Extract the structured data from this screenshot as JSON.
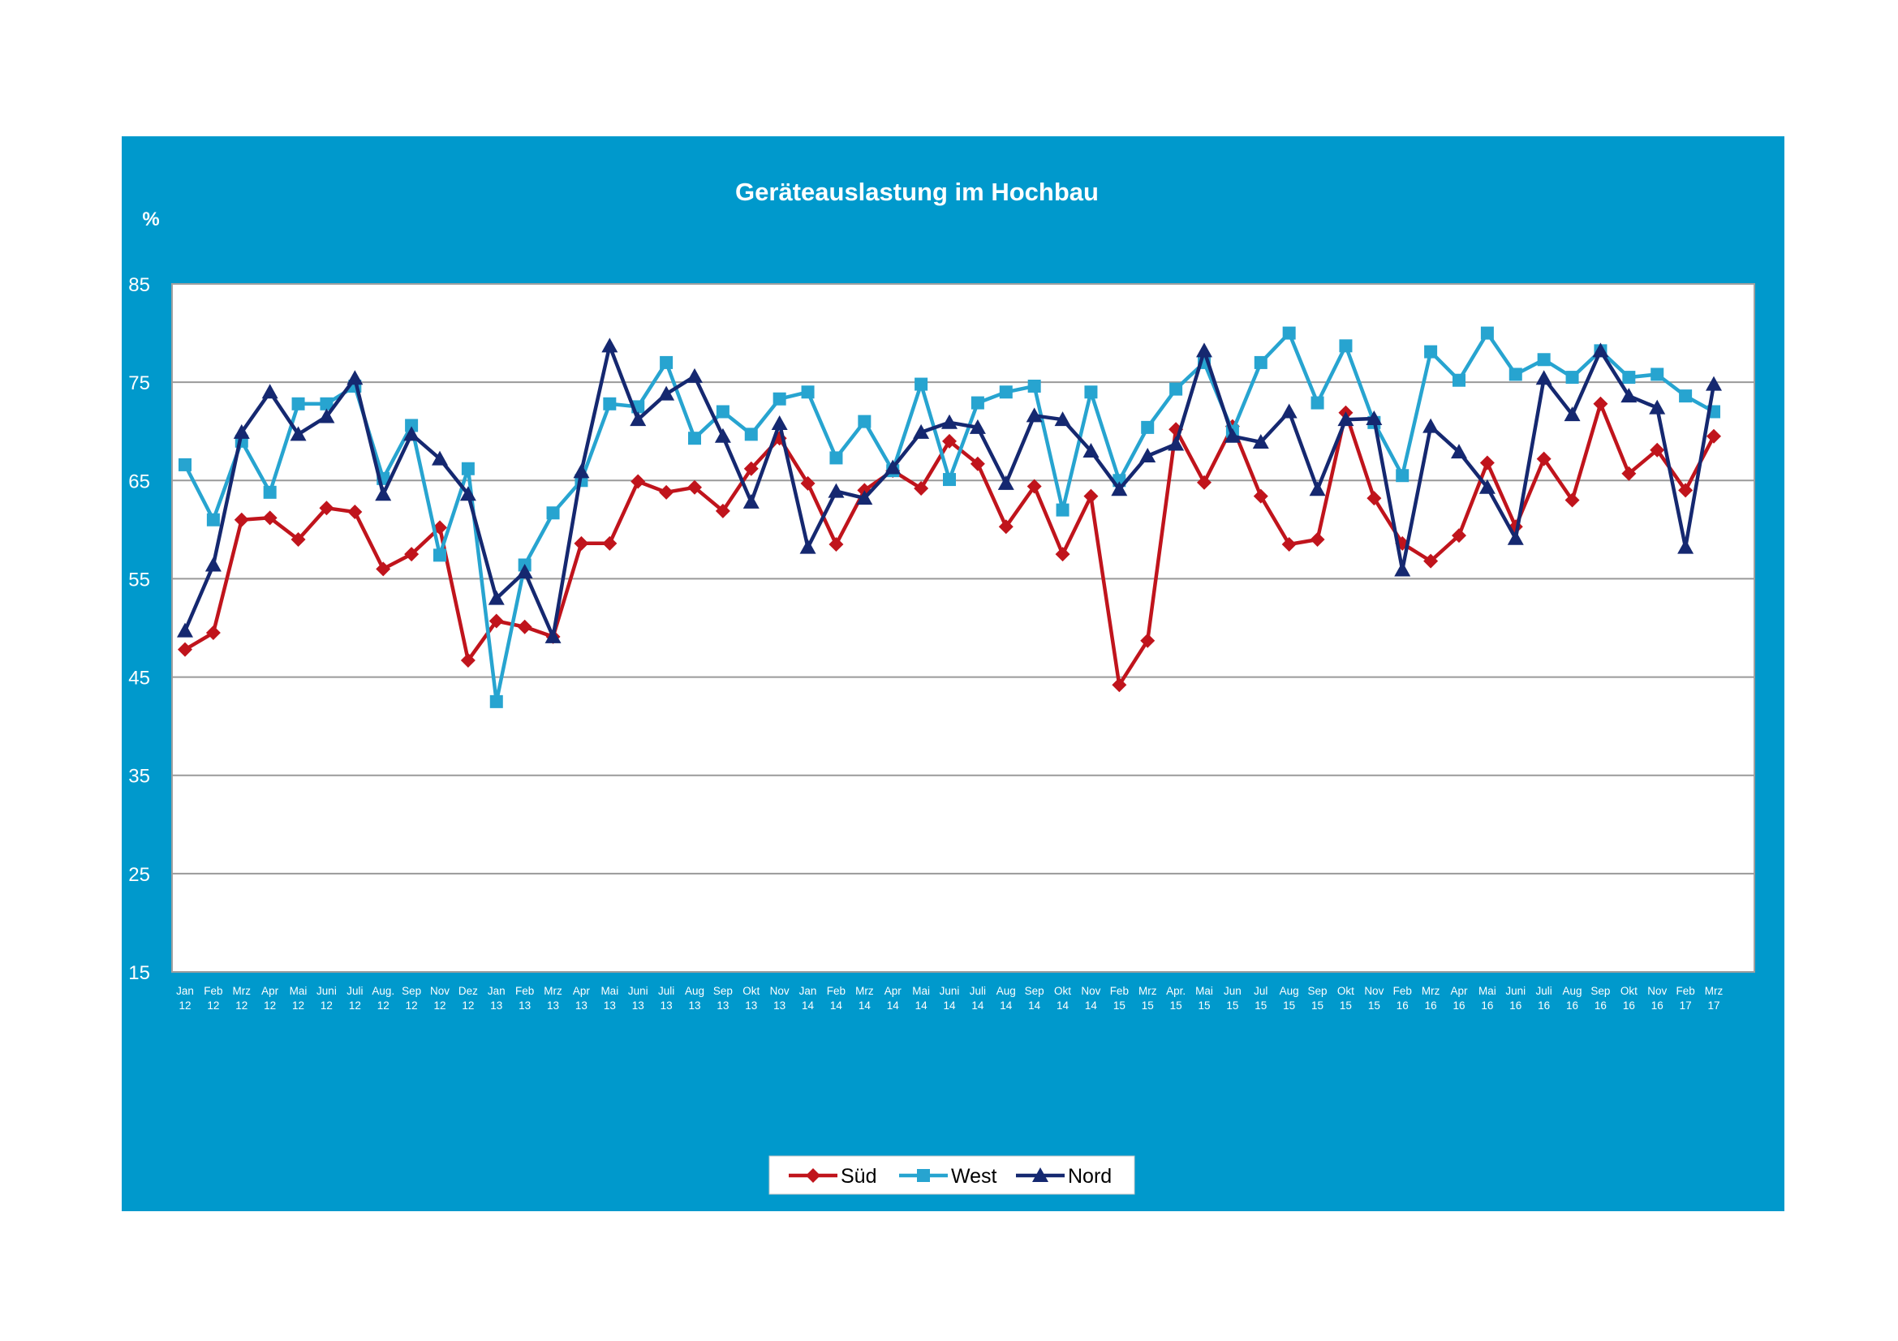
{
  "chart_data": {
    "type": "line",
    "title": "Geräteauslastung im Hochbau",
    "ylabel": "%",
    "xlabel": "",
    "ylim": [
      15,
      85
    ],
    "yticks": [
      15,
      25,
      35,
      45,
      55,
      65,
      75,
      85
    ],
    "grid": true,
    "legend_position": "bottom",
    "categories": [
      [
        "Jan",
        "12"
      ],
      [
        "Feb",
        "12"
      ],
      [
        "Mrz",
        "12"
      ],
      [
        "Apr",
        "12"
      ],
      [
        "Mai",
        "12"
      ],
      [
        "Juni",
        "12"
      ],
      [
        "Juli",
        "12"
      ],
      [
        "Aug.",
        "12"
      ],
      [
        "Sep",
        "12"
      ],
      [
        "Nov",
        "12"
      ],
      [
        "Dez",
        "12"
      ],
      [
        "Jan",
        "13"
      ],
      [
        "Feb",
        "13"
      ],
      [
        "Mrz",
        "13"
      ],
      [
        "Apr",
        "13"
      ],
      [
        "Mai",
        "13"
      ],
      [
        "Juni",
        "13"
      ],
      [
        "Juli",
        "13"
      ],
      [
        "Aug",
        "13"
      ],
      [
        "Sep",
        "13"
      ],
      [
        "Okt",
        "13"
      ],
      [
        "Nov",
        "13"
      ],
      [
        "Jan",
        "14"
      ],
      [
        "Feb",
        "14"
      ],
      [
        "Mrz",
        "14"
      ],
      [
        "Apr",
        "14"
      ],
      [
        "Mai",
        "14"
      ],
      [
        "Juni",
        "14"
      ],
      [
        "Juli",
        "14"
      ],
      [
        "Aug",
        "14"
      ],
      [
        "Sep",
        "14"
      ],
      [
        "Okt",
        "14"
      ],
      [
        "Nov",
        "14"
      ],
      [
        "Feb",
        "15"
      ],
      [
        "Mrz",
        "15"
      ],
      [
        "Apr.",
        "15"
      ],
      [
        "Mai",
        "15"
      ],
      [
        "Jun",
        "15"
      ],
      [
        "Jul",
        "15"
      ],
      [
        "Aug",
        "15"
      ],
      [
        "Sep",
        "15"
      ],
      [
        "Okt",
        "15"
      ],
      [
        "Nov",
        "15"
      ],
      [
        "Feb",
        "16"
      ],
      [
        "Mrz",
        "16"
      ],
      [
        "Apr",
        "16"
      ],
      [
        "Mai",
        "16"
      ],
      [
        "Juni",
        "16"
      ],
      [
        "Juli",
        "16"
      ],
      [
        "Aug",
        "16"
      ],
      [
        "Sep",
        "16"
      ],
      [
        "Okt",
        "16"
      ],
      [
        "Nov",
        "16"
      ],
      [
        "Feb",
        "17"
      ],
      [
        "Mrz",
        "17"
      ]
    ],
    "series": [
      {
        "name": "Süd",
        "color": "#c0141c",
        "marker": "diamond",
        "values": [
          47.8,
          49.5,
          61.0,
          61.2,
          59.0,
          62.2,
          61.8,
          56.0,
          57.5,
          60.2,
          46.7,
          50.7,
          50.1,
          49.1,
          58.6,
          58.6,
          64.9,
          63.8,
          64.3,
          61.9,
          66.2,
          69.3,
          64.7,
          58.5,
          64.0,
          66.0,
          64.2,
          69.0,
          66.7,
          60.3,
          64.4,
          57.5,
          63.4,
          44.2,
          48.7,
          70.2,
          64.8,
          70.5,
          63.4,
          58.5,
          59.0,
          71.9,
          63.2,
          58.6,
          56.8,
          59.4,
          66.8,
          60.3,
          67.2,
          63.0,
          72.8,
          65.7,
          68.1,
          64.0,
          69.5
        ]
      },
      {
        "name": "West",
        "color": "#27a4d0",
        "marker": "square",
        "values": [
          66.6,
          61.0,
          69.0,
          63.8,
          72.8,
          72.8,
          74.6,
          65.2,
          70.6,
          57.4,
          66.2,
          42.5,
          56.4,
          61.7,
          65.0,
          72.8,
          72.5,
          77.0,
          69.3,
          72.0,
          69.7,
          73.3,
          74.0,
          67.3,
          71.0,
          66.0,
          74.8,
          65.1,
          72.9,
          74.0,
          74.6,
          62.0,
          74.0,
          65.0,
          70.4,
          74.3,
          77.0,
          70.0,
          77.0,
          80.0,
          72.9,
          78.7,
          70.9,
          65.5,
          78.1,
          75.2,
          80.0,
          75.8,
          77.3,
          75.5,
          78.2,
          75.5,
          75.8,
          73.6,
          72.0
        ]
      },
      {
        "name": "Nord",
        "color": "#152870",
        "marker": "triangle",
        "values": [
          49.7,
          56.4,
          69.9,
          74.0,
          69.7,
          71.5,
          75.4,
          63.6,
          69.7,
          67.2,
          63.6,
          53.0,
          55.7,
          49.1,
          65.9,
          78.7,
          71.2,
          73.8,
          75.6,
          69.5,
          62.8,
          70.8,
          58.2,
          63.9,
          63.2,
          66.3,
          69.9,
          70.9,
          70.4,
          64.7,
          71.6,
          71.2,
          68.0,
          64.1,
          67.5,
          68.7,
          78.2,
          69.5,
          68.9,
          72.0,
          64.1,
          71.2,
          71.3,
          55.9,
          70.5,
          67.9,
          64.3,
          59.1,
          75.4,
          71.7,
          78.2,
          73.6,
          72.4,
          58.2,
          74.8
        ]
      }
    ]
  }
}
